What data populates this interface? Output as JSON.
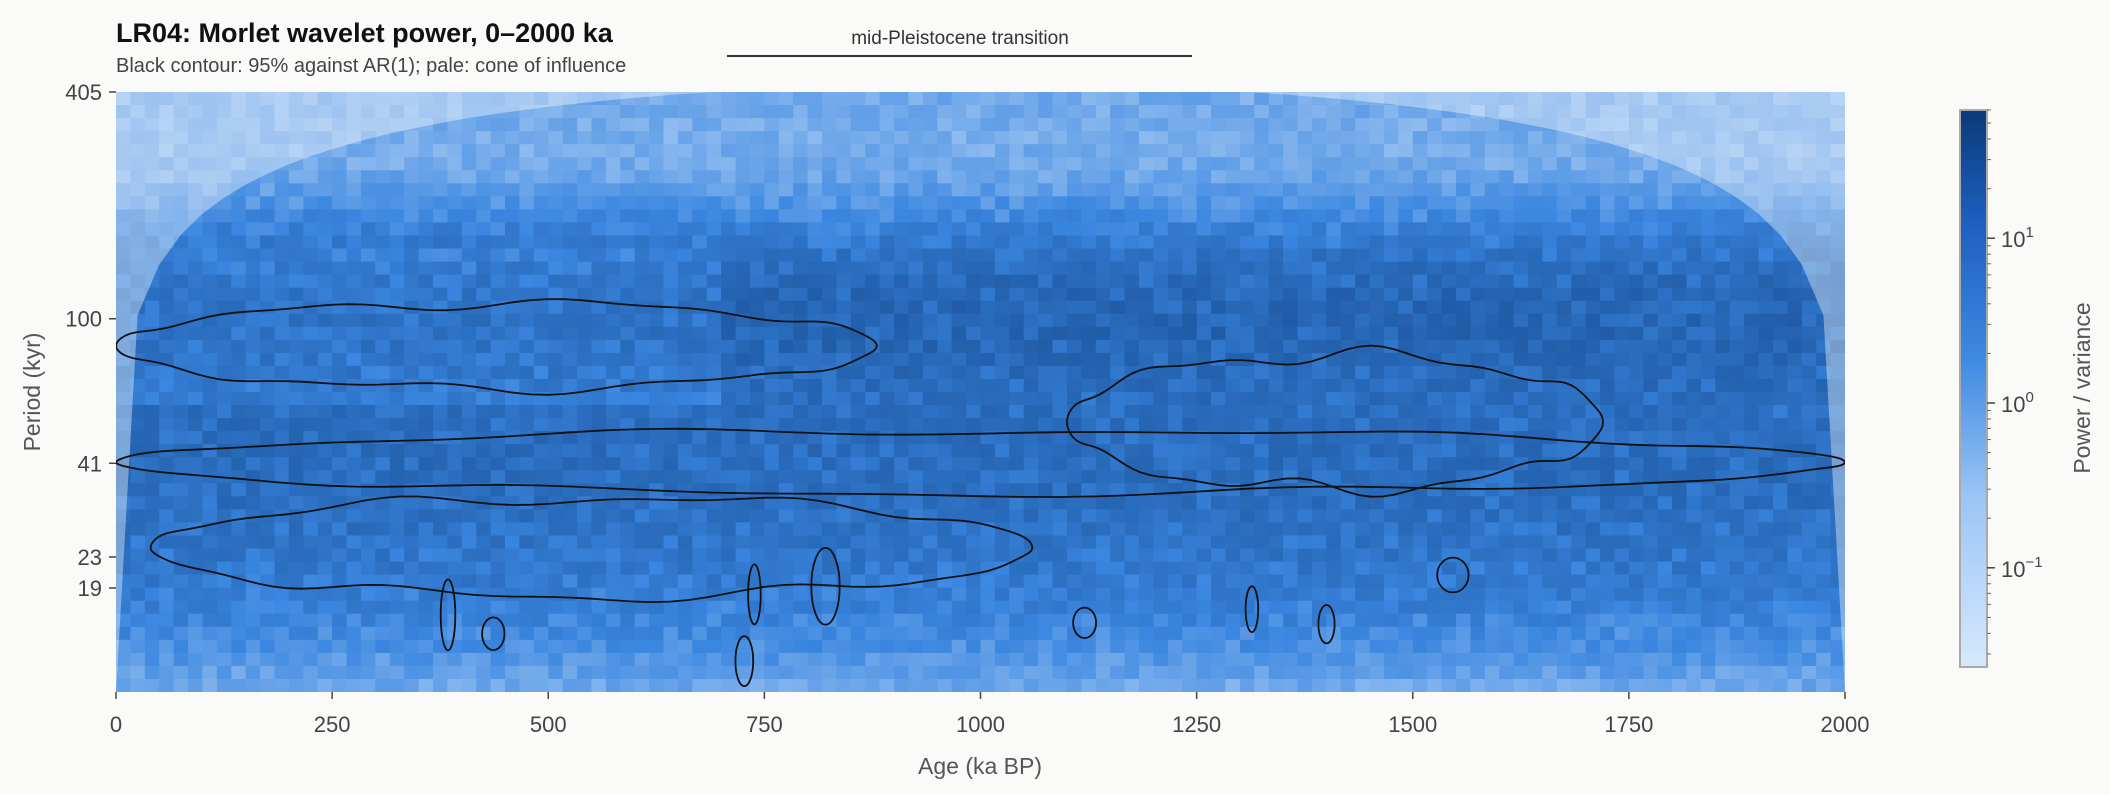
{
  "chart_data": {
    "type": "heatmap",
    "title": "LR04: Morlet wavelet power, 0–2000 ka",
    "subtitle": "Black contour: 95% against AR(1); pale: cone of influence",
    "xlabel": "Age (ka BP)",
    "ylabel": "Period (kyr)",
    "xlim": [
      0,
      2000
    ],
    "ylim": [
      10,
      405
    ],
    "y_scale": "log",
    "x_ticks": [
      0,
      250,
      500,
      750,
      1000,
      1250,
      1500,
      1750,
      2000
    ],
    "y_ticks": [
      19,
      23,
      41,
      100,
      405
    ],
    "colorbar": {
      "label": "Power / variance",
      "scale": "log",
      "range": [
        0.025,
        60
      ],
      "ticks": [
        {
          "value": 0.1,
          "base": "10",
          "exp": "−1"
        },
        {
          "value": 1,
          "base": "10",
          "exp": "0"
        },
        {
          "value": 10,
          "base": "10",
          "exp": "1"
        }
      ]
    },
    "annotation": {
      "text": "mid-Pleistocene transition",
      "x_start": 710,
      "x_end": 1250
    },
    "colors": {
      "low": "#cfe3fb",
      "mid": "#3a86e0",
      "high": "#0b3a78",
      "contour": "#111111"
    },
    "period_bands": [
      {
        "period": 405,
        "power": 0.3
      },
      {
        "period": 100,
        "power": 8
      },
      {
        "period": 41,
        "power": 5
      },
      {
        "period": 23,
        "power": 1.5
      },
      {
        "period": 19,
        "power": 1.2
      }
    ],
    "significance_regions": [
      {
        "x_range": [
          0,
          880
        ],
        "period_range": [
          65,
          110
        ]
      },
      {
        "x_range": [
          1100,
          1720
        ],
        "period_range": [
          35,
          80
        ]
      },
      {
        "x_range": [
          0,
          2000
        ],
        "period_range": [
          34,
          50
        ]
      },
      {
        "x_range": [
          40,
          1060
        ],
        "period_range": [
          18,
          33
        ]
      }
    ]
  }
}
